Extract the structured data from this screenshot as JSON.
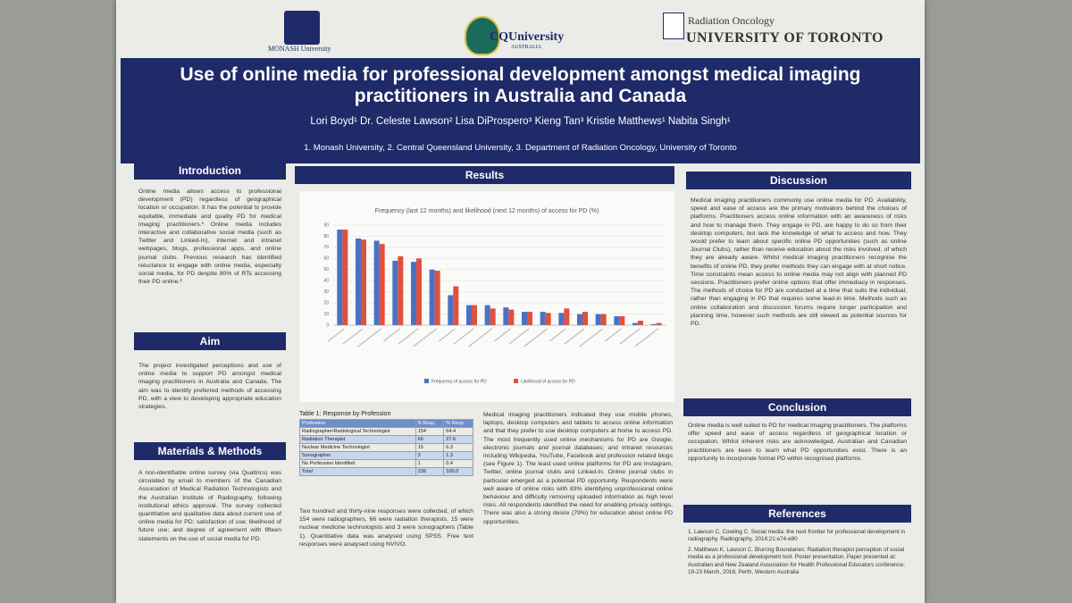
{
  "logos": {
    "monash": "MONASH University",
    "cqu": "CQUniversity",
    "cqu_sub": "AUSTRALIA",
    "toronto_dept": "Radiation Oncology",
    "toronto": "UNIVERSITY OF TORONTO"
  },
  "header": {
    "title": "Use of online media for professional development amongst medical imaging practitioners in Australia and Canada",
    "authors": "Lori Boyd¹ Dr. Celeste Lawson² Lisa DiProspero³ Kieng Tan³ Kristie Matthews¹ Nabita Singh¹",
    "affiliations": "1. Monash University, 2. Central Queensland University, 3. Department of Radiation Oncology, University of Toronto"
  },
  "introduction": {
    "heading": "Introduction",
    "text": "Online media allows access to professional development (PD) regardless of geographical location or occupation. It has the potential to provide equitable, immediate and quality PD for medical imaging practitioners.¹ Online media includes interactive and collaborative social media (such as Twitter and Linked-In), internet and intranet webpages, blogs, professional apps, and online journal clubs. Previous research has identified reluctance to engage with online media, especially social media, for PD despite 80% of RTs accessing their PD online.²"
  },
  "aim": {
    "heading": "Aim",
    "text": "The project investigated perceptions and use of online media to support PD amongst medical imaging practitioners in Australia and Canada. The aim was to identify preferred methods of accessing PD, with a view to developing appropriate education strategies."
  },
  "methods": {
    "heading": "Materials & Methods",
    "text": "A non-identifiable online survey (via Qualtrics) was circulated by email to members of the Canadian Association of Medical Radiation Technologists and the Australian Institute of Radiography, following institutional ethics approval. The survey collected quantitative and qualitative data about current use of online media for PD; satisfaction of use; likelihood of future use; and degree of agreement with fifteen statements on the use of social media for PD."
  },
  "results": {
    "heading": "Results",
    "figure": {
      "type": "bar",
      "title": "Frequency (last 12 months) and likelihood (next 12 months) of access for PD (%)",
      "categories": [
        null,
        null,
        null,
        null,
        null,
        null,
        null,
        null,
        null,
        null,
        null,
        null,
        null,
        null,
        null,
        null,
        null,
        null
      ],
      "series": [
        {
          "name": "Frequency of access for PD",
          "color": "#4a72c4",
          "values": [
            86,
            78,
            76,
            58,
            57,
            50,
            27,
            18,
            18,
            16,
            12,
            12,
            11,
            10,
            10,
            8,
            2,
            1
          ]
        },
        {
          "name": "Likelihood of access for PD",
          "color": "#e0503c",
          "values": [
            86,
            77,
            73,
            62,
            60,
            49,
            35,
            18,
            15,
            14,
            12,
            11,
            15,
            12,
            10,
            8,
            4,
            2
          ]
        }
      ],
      "ylim": [
        0,
        90
      ],
      "yticks": [
        0,
        10,
        20,
        30,
        40,
        50,
        60,
        70,
        80,
        90
      ],
      "grid": true
    },
    "table": {
      "caption": "Table 1: Response by Profession",
      "header": [
        "Profession",
        "N Resp.",
        "% Resp."
      ],
      "rows": [
        [
          "Radiographer/Radiological Technologist",
          "154",
          "64.4"
        ],
        [
          "Radiation Therapist",
          "66",
          "27.6"
        ],
        [
          "Nuclear Medicine Technologist",
          "15",
          "6.3"
        ],
        [
          "Sonographer",
          "3",
          "1.3"
        ],
        [
          "No Profession Identified",
          "1",
          "0.4"
        ],
        [
          "Total",
          "239",
          "100.0"
        ]
      ]
    },
    "text1": "Two hundred and thirty-nine responses were collected, of which 154 were radiographers, 66 were radiation therapists, 15 were nuclear medicine technologists and 3 were sonographers (Table 1). Quantitative data was analysed using SPSS. Free text responses were analysed using NVIVO.",
    "text2": "Medical imaging practitioners indicated they use mobile phones, laptops, desktop computers and tablets to access online information and that they prefer to use desktop computers at home to access PD. The most frequently used online mechanisms for PD are Google; electronic journals and journal databases; and intranet resources including Wikipedia, YouTube, Facebook and profession related blogs (see Figure 1). The least used online platforms for PD are Instagram, Twitter, online journal clubs and Linked-In. Online journal clubs in particular emerged as a potential PD opportunity. Respondents were well aware of online risks with 83% identifying unprofessional online behaviour and difficulty removing uploaded information as high level risks. All respondents identified the need for enabling privacy settings. There was also a strong desire (79%) for education about online PD opportunities."
  },
  "discussion": {
    "heading": "Discussion",
    "text": "Medical imaging practitioners commonly use online media for PD. Availability, speed and ease of access are the primary motivators behind the choices of platforms. Practitioners access online information with an awareness of risks and how to manage them. They engage in PD, are happy to do so from their desktop computers, but lack the knowledge of what to access and how. They would prefer to learn about specific online PD opportunities (such as online Journal Clubs), rather than receive education about the risks involved, of which they are already aware. Whilst medical imaging practitioners recognise the benefits of online PD, they prefer methods they can engage with at short notice. Time constraints mean access to online media may not align with planned PD sessions. Practitioners prefer online options that offer immediacy in responses. The methods of choice for PD are conducted at a time that suits the individual, rather than engaging in PD that requires some lead-in time. Methods such as online collaboration and discussion forums require longer participation and planning time, however such methods are still viewed as potential sources for PD."
  },
  "conclusion": {
    "heading": "Conclusion",
    "text": "Online media is well suited to PD for medical imaging practitioners. The platforms offer speed and ease of access regardless of geographical location or occupation. Whilst inherent risks are acknowledged, Australian and Canadian practitioners are keen to learn what PD opportunities exist. There is an opportunity to incorporate formal PD within recognised platforms."
  },
  "references": {
    "heading": "References",
    "items": [
      "1. Lawson C, Cowling C. Social media: the next frontier for professional development in radiography. Radiography. 2014;21:e74-e80",
      "2. Matthews K, Lawson C. Blurring Boundaries: Radiation therapist perception of social media as a professional development tool. Poster presentation. Paper presented at: Australian and New Zealand Association for Health Professional Educators conference; 19-23 March, 2016; Perth, Western Australia"
    ]
  }
}
